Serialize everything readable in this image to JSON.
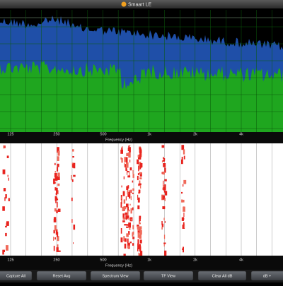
{
  "title_bar": {
    "title": "Smaart LE"
  },
  "spectrum": {
    "frequency_labels": [
      "125",
      "250",
      "500",
      "1k",
      "2k",
      "4k"
    ],
    "axis_label": "Frequency (Hz)"
  },
  "spectrograph": {
    "frequency_labels": [
      "125",
      "250",
      "500",
      "1k",
      "2k",
      "4k"
    ],
    "axis_label": "Frequency (Hz)"
  },
  "buttons": [
    "Capture All",
    "Reset Avg",
    "Spectrum View",
    "TF View",
    "Clear All dB",
    "dB +"
  ]
}
